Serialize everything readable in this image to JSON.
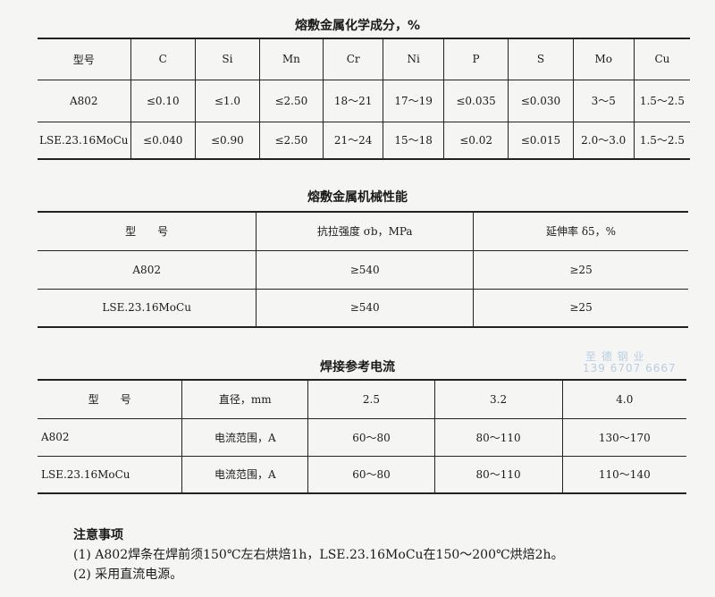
{
  "chem": {
    "title": "熔敷金属化学成分，%",
    "headers": [
      "型号",
      "C",
      "Si",
      "Mn",
      "Cr",
      "Ni",
      "P",
      "S",
      "Mo",
      "Cu"
    ],
    "rows": [
      [
        "A802",
        "≤0.10",
        "≤1.0",
        "≤2.50",
        "18～21",
        "17～19",
        "≤0.035",
        "≤0.030",
        "3～5",
        "1.5～2.5"
      ],
      [
        "LSE.23.16MoCu",
        "≤0.040",
        "≤0.90",
        "≤2.50",
        "21～24",
        "15～18",
        "≤0.02",
        "≤0.015",
        "2.0～3.0",
        "1.5～2.5"
      ]
    ]
  },
  "mech": {
    "title": "熔敷金属机械性能",
    "headers": [
      "型　　号",
      "抗拉强度 σb，MPa",
      "延伸率 δ5，%"
    ],
    "rows": [
      [
        "A802",
        "≥540",
        "≥25"
      ],
      [
        "LSE.23.16MoCu",
        "≥540",
        "≥25"
      ]
    ]
  },
  "current": {
    "title": "焊接参考电流",
    "headers": [
      "型　　号",
      "直径，mm",
      "2.5",
      "3.2",
      "4.0"
    ],
    "rows": [
      [
        "A802",
        "电流范围，A",
        "60～80",
        "80～110",
        "130～170"
      ],
      [
        "LSE.23.16MoCu",
        "电流范围，A",
        "60～80",
        "80～110",
        "110～140"
      ]
    ]
  },
  "watermark": {
    "line1": "至 德 钢 业",
    "line2": "139 6707 6667"
  },
  "notes": {
    "heading": "注意事项",
    "items": [
      "(1) A802焊条在焊前须150℃左右烘焙1h，LSE.23.16MoCu在150～200℃烘焙2h。",
      "(2) 采用直流电源。"
    ]
  }
}
